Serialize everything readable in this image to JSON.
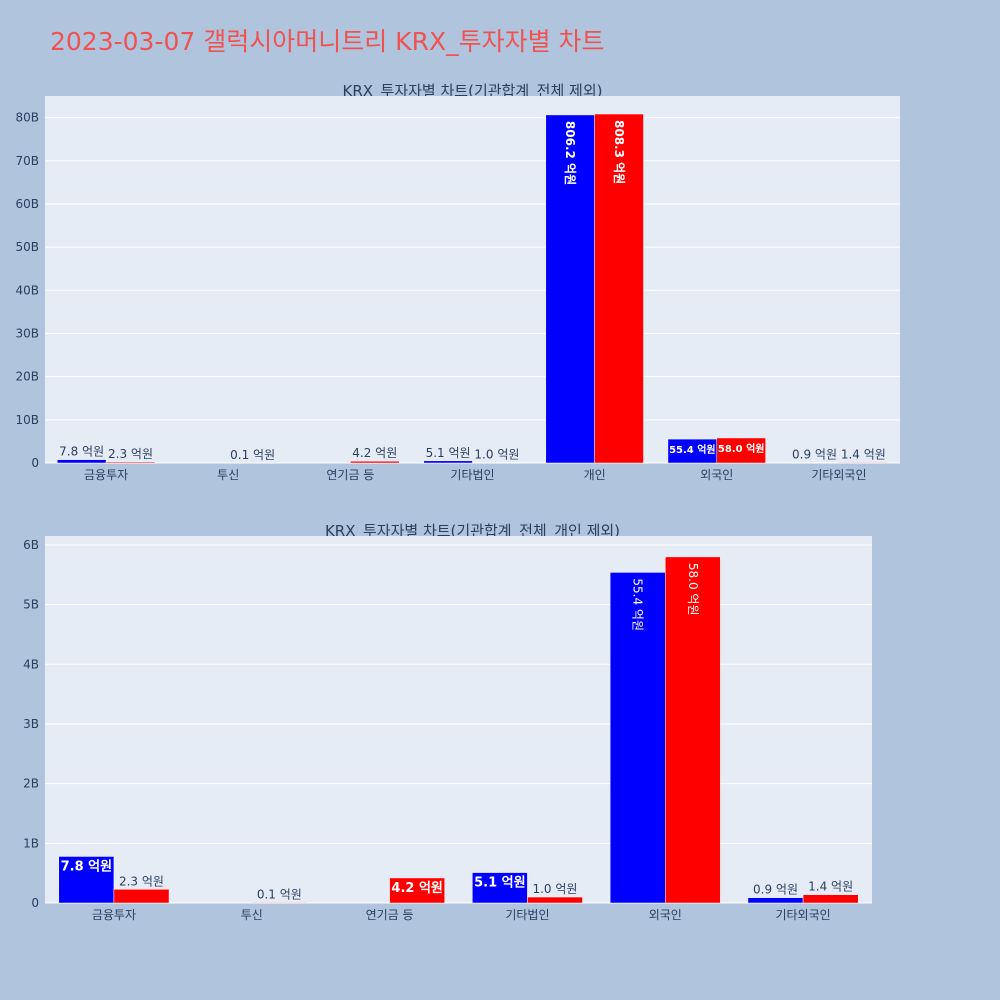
{
  "page": {
    "title": "2023-03-07 갤럭시아머니트리 KRX_투자자별 차트"
  },
  "colors": {
    "buy": "#0000ff",
    "sell": "#ff0000",
    "plot_bg": "#e5ecf6",
    "grid": "#ffffff",
    "text": "#2a3f5f",
    "title": "#ef5350"
  },
  "chart_data": [
    {
      "type": "bar",
      "title": "KRX_투자자별 차트(기관합계_전체 제외)",
      "categories": [
        "금융투자",
        "투신",
        "연기금 등",
        "기타법인",
        "개인",
        "외국인",
        "기타외국인"
      ],
      "series": [
        {
          "color": "#0000ff",
          "values": [
            0.78,
            0,
            0,
            0.51,
            80.62,
            5.54,
            0.09
          ],
          "labels": [
            "7.8 억원",
            "",
            "",
            "5.1 억원",
            "806.2 억원",
            "55.4 억원",
            "0.9 억원"
          ]
        },
        {
          "color": "#ff0000",
          "values": [
            0.23,
            0.01,
            0.42,
            0.1,
            80.83,
            5.8,
            0.14
          ],
          "labels": [
            "2.3 억원",
            "0.1 억원",
            "4.2 억원",
            "1.0 억원",
            "808.3 억원",
            "58.0 억원",
            "1.4 억원"
          ]
        }
      ],
      "ylim": [
        0,
        85
      ],
      "yticks": [
        0,
        10,
        20,
        30,
        40,
        50,
        60,
        70,
        80
      ],
      "ytick_labels": [
        "0",
        "10B",
        "20B",
        "30B",
        "40B",
        "50B",
        "60B",
        "70B",
        "80B"
      ],
      "grid": true
    },
    {
      "type": "bar",
      "title": "KRX_투자자별 차트(기관합계_전체_개인 제외)",
      "categories": [
        "금융투자",
        "투신",
        "연기금 등",
        "기타법인",
        "외국인",
        "기타외국인"
      ],
      "series": [
        {
          "color": "#0000ff",
          "values": [
            0.78,
            0,
            0,
            0.51,
            5.54,
            0.09
          ],
          "labels": [
            "7.8 억원",
            "",
            "",
            "5.1 억원",
            "55.4 억원",
            "0.9 억원"
          ]
        },
        {
          "color": "#ff0000",
          "values": [
            0.23,
            0.01,
            0.42,
            0.1,
            5.8,
            0.14
          ],
          "labels": [
            "2.3 억원",
            "0.1 억원",
            "4.2 억원",
            "1.0 억원",
            "58.0 억원",
            "1.4 억원"
          ]
        }
      ],
      "ylim": [
        0,
        6.15
      ],
      "yticks": [
        0,
        1,
        2,
        3,
        4,
        5,
        6
      ],
      "ytick_labels": [
        "0",
        "1B",
        "2B",
        "3B",
        "4B",
        "5B",
        "6B"
      ],
      "grid": true
    }
  ]
}
